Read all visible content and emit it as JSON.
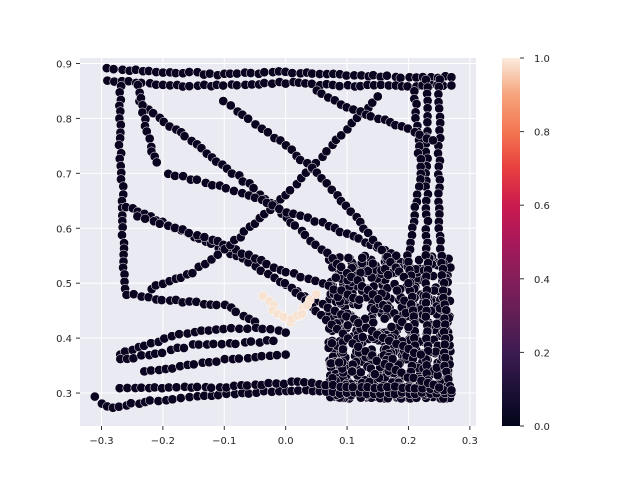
{
  "chart_data": {
    "type": "scatter",
    "xlabel": "",
    "ylabel": "",
    "xlim": [
      -0.335,
      0.31
    ],
    "ylim": [
      0.24,
      0.91
    ],
    "xticks": [
      -0.3,
      -0.2,
      -0.1,
      0.0,
      0.1,
      0.2,
      0.3
    ],
    "xtick_labels": [
      "−0.3",
      "−0.2",
      "−0.1",
      "0.0",
      "0.1",
      "0.2",
      "0.3"
    ],
    "yticks": [
      0.3,
      0.4,
      0.5,
      0.6,
      0.7,
      0.8,
      0.9
    ],
    "ytick_labels": [
      "0.3",
      "0.4",
      "0.5",
      "0.6",
      "0.7",
      "0.8",
      "0.9"
    ],
    "grid": true,
    "colorbar": {
      "colormap": "rocket",
      "range": [
        0.0,
        1.0
      ],
      "ticks": [
        0.0,
        0.2,
        0.4,
        0.6,
        0.8,
        1.0
      ],
      "tick_labels": [
        "0.0",
        "0.2",
        "0.4",
        "0.6",
        "0.8",
        "1.0"
      ]
    },
    "point_value_low_color": "#0b0420",
    "point_value_high_color": "#f8e2d2",
    "point_edge_color": "#ffffff",
    "axes_background": "#eaeaf2",
    "approximate_trajectories": [
      {
        "value": 0,
        "points": [
          [
            -0.29,
            0.89
          ],
          [
            -0.2,
            0.885
          ],
          [
            -0.1,
            0.88
          ],
          [
            0.0,
            0.885
          ],
          [
            0.1,
            0.88
          ],
          [
            0.2,
            0.875
          ],
          [
            0.27,
            0.875
          ]
        ]
      },
      {
        "value": 0,
        "points": [
          [
            -0.29,
            0.87
          ],
          [
            -0.2,
            0.86
          ],
          [
            -0.1,
            0.86
          ],
          [
            0.0,
            0.865
          ],
          [
            0.1,
            0.86
          ],
          [
            0.2,
            0.86
          ],
          [
            0.27,
            0.86
          ]
        ]
      },
      {
        "value": 0,
        "points": [
          [
            -0.27,
            0.86
          ],
          [
            -0.27,
            0.75
          ],
          [
            -0.265,
            0.65
          ],
          [
            -0.265,
            0.55
          ],
          [
            -0.26,
            0.48
          ],
          [
            -0.2,
            0.47
          ],
          [
            -0.1,
            0.46
          ],
          [
            -0.05,
            0.43
          ]
        ]
      },
      {
        "value": 0,
        "points": [
          [
            0.25,
            0.87
          ],
          [
            0.25,
            0.75
          ],
          [
            0.25,
            0.6
          ],
          [
            0.26,
            0.45
          ],
          [
            0.26,
            0.35
          ],
          [
            0.27,
            0.3
          ]
        ]
      },
      {
        "value": 0,
        "points": [
          [
            0.23,
            0.87
          ],
          [
            0.23,
            0.7
          ],
          [
            0.23,
            0.55
          ],
          [
            0.23,
            0.4
          ],
          [
            0.23,
            0.3
          ]
        ]
      },
      {
        "value": 0,
        "points": [
          [
            0.21,
            0.85
          ],
          [
            0.22,
            0.7
          ],
          [
            0.2,
            0.55
          ],
          [
            0.21,
            0.4
          ],
          [
            0.2,
            0.3
          ]
        ]
      },
      {
        "value": 0,
        "points": [
          [
            -0.24,
            0.83
          ],
          [
            -0.18,
            0.78
          ],
          [
            -0.12,
            0.73
          ],
          [
            -0.06,
            0.68
          ],
          [
            0.0,
            0.62
          ],
          [
            0.05,
            0.57
          ],
          [
            0.1,
            0.52
          ],
          [
            0.15,
            0.47
          ],
          [
            0.2,
            0.42
          ]
        ]
      },
      {
        "value": 0,
        "points": [
          [
            -0.26,
            0.64
          ],
          [
            -0.2,
            0.61
          ],
          [
            -0.14,
            0.58
          ],
          [
            -0.08,
            0.55
          ],
          [
            -0.02,
            0.51
          ],
          [
            0.04,
            0.47
          ],
          [
            0.1,
            0.44
          ],
          [
            0.16,
            0.4
          ],
          [
            0.22,
            0.37
          ]
        ]
      },
      {
        "value": 0,
        "points": [
          [
            -0.24,
            0.62
          ],
          [
            -0.18,
            0.6
          ],
          [
            -0.12,
            0.58
          ],
          [
            -0.06,
            0.55
          ],
          [
            0.0,
            0.52
          ],
          [
            0.06,
            0.5
          ],
          [
            0.12,
            0.47
          ]
        ]
      },
      {
        "value": 0,
        "points": [
          [
            -0.22,
            0.49
          ],
          [
            -0.15,
            0.52
          ],
          [
            -0.1,
            0.56
          ],
          [
            -0.05,
            0.61
          ],
          [
            0.0,
            0.66
          ],
          [
            0.05,
            0.72
          ],
          [
            0.1,
            0.78
          ],
          [
            0.15,
            0.84
          ]
        ]
      },
      {
        "value": 0,
        "points": [
          [
            -0.19,
            0.7
          ],
          [
            -0.12,
            0.68
          ],
          [
            -0.06,
            0.66
          ],
          [
            0.0,
            0.63
          ],
          [
            0.06,
            0.61
          ],
          [
            0.12,
            0.58
          ],
          [
            0.18,
            0.55
          ]
        ]
      },
      {
        "value": 0,
        "points": [
          [
            -0.27,
            0.37
          ],
          [
            -0.22,
            0.39
          ],
          [
            -0.16,
            0.41
          ],
          [
            -0.1,
            0.415
          ],
          [
            -0.05,
            0.42
          ],
          [
            0.0,
            0.41
          ]
        ]
      },
      {
        "value": 0,
        "points": [
          [
            -0.27,
            0.36
          ],
          [
            -0.2,
            0.375
          ],
          [
            -0.14,
            0.39
          ],
          [
            -0.08,
            0.39
          ],
          [
            -0.02,
            0.395
          ]
        ]
      },
      {
        "value": 0,
        "points": [
          [
            -0.23,
            0.34
          ],
          [
            -0.16,
            0.35
          ],
          [
            -0.1,
            0.36
          ],
          [
            -0.05,
            0.365
          ],
          [
            0.0,
            0.37
          ]
        ]
      },
      {
        "value": 0,
        "points": [
          [
            -0.31,
            0.295
          ],
          [
            -0.3,
            0.28
          ],
          [
            -0.28,
            0.275
          ],
          [
            -0.25,
            0.28
          ],
          [
            -0.22,
            0.285
          ],
          [
            -0.17,
            0.29
          ],
          [
            -0.12,
            0.295
          ],
          [
            -0.06,
            0.3
          ],
          [
            0.0,
            0.305
          ],
          [
            0.1,
            0.3
          ],
          [
            0.2,
            0.3
          ],
          [
            0.27,
            0.3
          ]
        ]
      },
      {
        "value": 0,
        "points": [
          [
            -0.27,
            0.31
          ],
          [
            -0.2,
            0.31
          ],
          [
            -0.12,
            0.31
          ],
          [
            -0.05,
            0.315
          ],
          [
            0.02,
            0.32
          ],
          [
            0.1,
            0.31
          ],
          [
            0.2,
            0.31
          ],
          [
            0.27,
            0.305
          ]
        ]
      },
      {
        "value": 0,
        "points": [
          [
            -0.1,
            0.83
          ],
          [
            -0.05,
            0.79
          ],
          [
            0.0,
            0.75
          ],
          [
            0.05,
            0.7
          ],
          [
            0.1,
            0.64
          ],
          [
            0.15,
            0.57
          ],
          [
            0.2,
            0.5
          ]
        ]
      },
      {
        "value": 0,
        "points": [
          [
            0.05,
            0.85
          ],
          [
            0.1,
            0.82
          ],
          [
            0.15,
            0.8
          ],
          [
            0.2,
            0.78
          ],
          [
            0.24,
            0.76
          ]
        ]
      },
      {
        "value": 0,
        "points": [
          [
            -0.24,
            0.86
          ],
          [
            -0.23,
            0.8
          ],
          [
            -0.22,
            0.75
          ],
          [
            -0.21,
            0.72
          ]
        ]
      },
      {
        "value": 0,
        "points": [
          [
            0.0,
            0.5
          ],
          [
            0.05,
            0.45
          ],
          [
            0.1,
            0.4
          ],
          [
            0.15,
            0.36
          ],
          [
            0.2,
            0.33
          ],
          [
            0.25,
            0.31
          ]
        ]
      },
      {
        "value": 1,
        "points": [
          [
            -0.035,
            0.475
          ],
          [
            -0.02,
            0.46
          ],
          [
            -0.01,
            0.445
          ],
          [
            0.0,
            0.435
          ],
          [
            0.01,
            0.43
          ],
          [
            0.02,
            0.44
          ],
          [
            0.03,
            0.455
          ],
          [
            0.04,
            0.47
          ],
          [
            0.05,
            0.48
          ]
        ]
      },
      {
        "value": 1,
        "points": [
          [
            -0.02,
            0.45
          ],
          [
            -0.005,
            0.44
          ],
          [
            0.01,
            0.435
          ],
          [
            0.025,
            0.445
          ],
          [
            0.035,
            0.46
          ]
        ]
      }
    ],
    "dense_region": {
      "value": 0,
      "x_range": [
        0.07,
        0.27
      ],
      "y_range": [
        0.29,
        0.55
      ]
    }
  }
}
